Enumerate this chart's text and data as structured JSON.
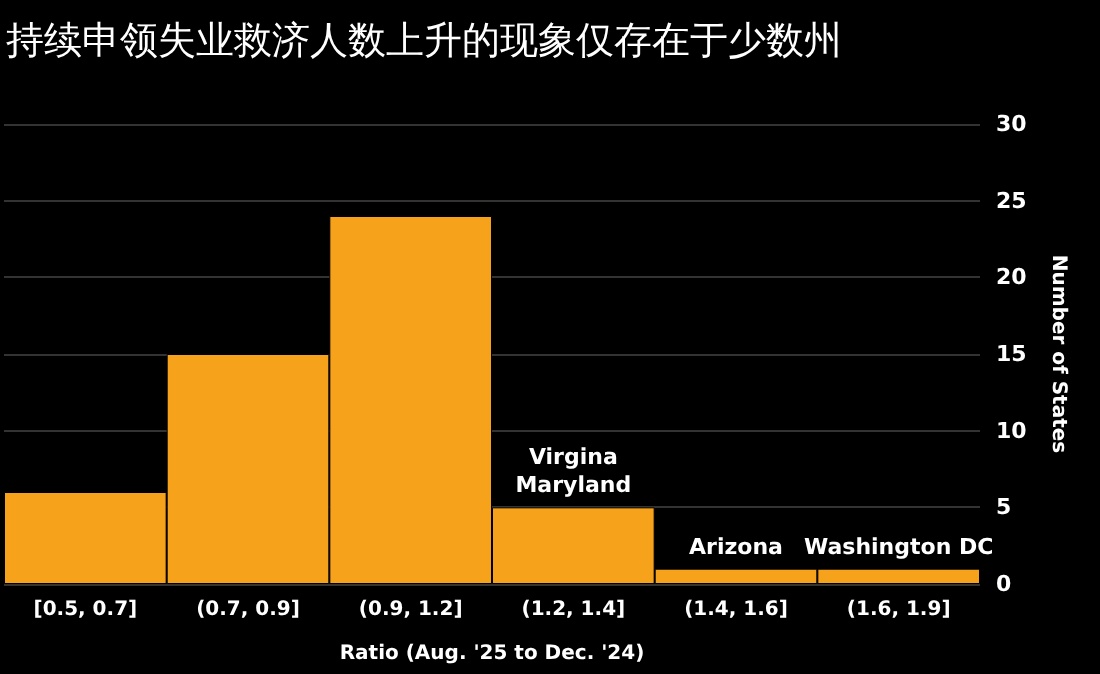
{
  "chart_data": {
    "type": "bar",
    "title": "持续申领失业救济人数上升的现象仅存在于少数州",
    "xlabel": "Ratio (Aug. '25 to Dec. '24)",
    "ylabel": "Number of States",
    "categories": [
      "[0.5, 0.7]",
      "(0.7, 0.9]",
      "(0.9, 1.2]",
      "(1.2, 1.4]",
      "(1.4, 1.6]",
      "(1.6, 1.9]"
    ],
    "values": [
      6,
      15,
      24,
      5,
      1,
      1
    ],
    "color": "#f7a21b",
    "ylim": [
      0,
      30
    ],
    "yticks": [
      0,
      5,
      10,
      15,
      20,
      25,
      30
    ],
    "grid": "y",
    "annotations": [
      {
        "text": "Virgina\nMaryland",
        "x": "(1.2, 1.4]",
        "y": 5
      },
      {
        "text": "Arizona",
        "x": "(1.4, 1.6]",
        "y": 1
      },
      {
        "text": "Washington DC",
        "x": "(1.6, 1.9]",
        "y": 1
      }
    ]
  }
}
